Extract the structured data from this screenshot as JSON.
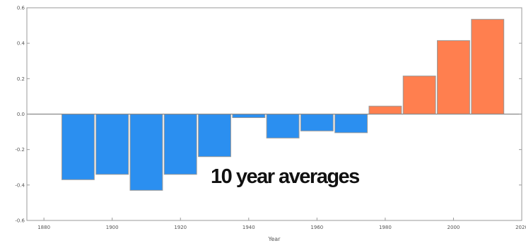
{
  "chart_data": {
    "type": "bar",
    "categories": [
      "1890",
      "1900",
      "1910",
      "1920",
      "1930",
      "1940",
      "1950",
      "1960",
      "1970",
      "1980",
      "1990",
      "2000",
      "2010"
    ],
    "values": [
      -0.37,
      -0.34,
      -0.43,
      -0.34,
      -0.24,
      -0.02,
      -0.135,
      -0.095,
      -0.105,
      0.045,
      0.215,
      0.415,
      0.535
    ],
    "title": "",
    "xlabel": "Year",
    "ylabel": "",
    "xlim": [
      1875,
      2020
    ],
    "ylim": [
      -0.6,
      0.6
    ],
    "x_ticks": [
      "1880",
      "1900",
      "1920",
      "1940",
      "1960",
      "1980",
      "2000",
      "2020"
    ],
    "y_ticks": [
      "0.6",
      "0.4",
      "0.2",
      "0.0",
      "-0.2",
      "-0.4",
      "-0.6"
    ],
    "bar_width_years": 9.5,
    "grid": false,
    "annotation": "10 year averages",
    "colors": {
      "negative": "#2b8ff0",
      "positive": "#ff7f4f",
      "bar_edge": "#9a9a9a",
      "zero_line": "#8a8a8a",
      "axes": "#9a9a9a"
    }
  }
}
